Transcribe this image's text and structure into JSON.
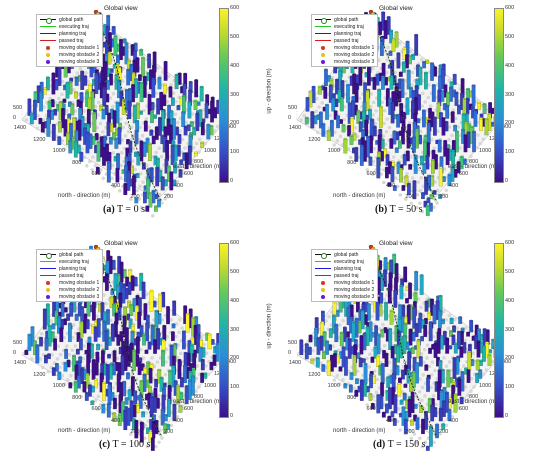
{
  "figure": {
    "panels": [
      {
        "id": "a",
        "letter": "(a)",
        "caption": "T = 0 s"
      },
      {
        "id": "b",
        "letter": "(b)",
        "caption": "T = 50 s"
      },
      {
        "id": "c",
        "letter": "(c)",
        "caption": "T = 100 s"
      },
      {
        "id": "d",
        "letter": "(d)",
        "caption": "T = 150 s"
      }
    ],
    "plot_title": "Global view",
    "xlabel": "north - direction (m)",
    "ylabel": "east - direction (m)",
    "zlabel": "up - direction (m)",
    "north_ticks": [
      "1400",
      "1200",
      "1000",
      "800",
      "600",
      "400",
      "200"
    ],
    "east_ticks": [
      "200",
      "400",
      "600",
      "800",
      "1000",
      "1200",
      "1400"
    ],
    "up_ticks": [
      "500",
      "0"
    ],
    "colorbar_ticks": [
      "600",
      "500",
      "400",
      "300",
      "200",
      "100",
      "0"
    ],
    "legend": [
      {
        "label": "global path",
        "kind": "circle-line",
        "color": "#2b7a1e"
      },
      {
        "label": "executing traj",
        "kind": "line",
        "color": "#1fcc1f"
      },
      {
        "label": "planning traj",
        "kind": "line",
        "color": "#1a1ad8"
      },
      {
        "label": "passed traj",
        "kind": "line",
        "color": "#d81a1a"
      },
      {
        "label": "moving obstacle 1",
        "kind": "dot",
        "color": "#d8361a"
      },
      {
        "label": "moving obstacle 2",
        "kind": "dot",
        "color": "#e6c21a"
      },
      {
        "label": "moving obstacle 3",
        "kind": "dot",
        "color": "#6a1ad8"
      }
    ]
  },
  "chart_data": [
    {
      "type": "other",
      "title": "Global view",
      "xlabel": "north - direction (m)",
      "ylabel": "east - direction (m)",
      "zlabel": "up - direction (m)",
      "xlim": [
        0,
        1400
      ],
      "ylim": [
        0,
        1400
      ],
      "colorbar_lim": [
        0,
        600
      ],
      "caption": "T = 0 s"
    },
    {
      "type": "other",
      "title": "Global view",
      "xlabel": "north - direction (m)",
      "ylabel": "east - direction (m)",
      "zlabel": "up - direction (m)",
      "xlim": [
        0,
        1400
      ],
      "ylim": [
        0,
        1400
      ],
      "colorbar_lim": [
        0,
        600
      ],
      "caption": "T = 50 s"
    },
    {
      "type": "other",
      "title": "Global view",
      "xlabel": "north - direction (m)",
      "ylabel": "east - direction (m)",
      "zlabel": "up - direction (m)",
      "xlim": [
        0,
        1400
      ],
      "ylim": [
        0,
        1400
      ],
      "colorbar_lim": [
        0,
        600
      ],
      "caption": "T = 100 s"
    },
    {
      "type": "other",
      "title": "Global view",
      "xlabel": "north - direction (m)",
      "ylabel": "east - direction (m)",
      "zlabel": "up - direction (m)",
      "xlim": [
        0,
        1400
      ],
      "ylim": [
        0,
        1400
      ],
      "colorbar_lim": [
        0,
        600
      ],
      "caption": "T = 150 s"
    }
  ]
}
